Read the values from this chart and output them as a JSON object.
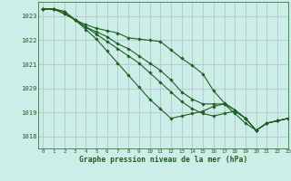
{
  "background_color": "#cceee8",
  "plot_bg_color": "#cceee8",
  "grid_color": "#bbcccc",
  "line_color": "#1e5e1e",
  "xlabel": "Graphe pression niveau de la mer (hPa)",
  "xlim": [
    -0.5,
    23
  ],
  "ylim": [
    1017.5,
    1023.6
  ],
  "yticks": [
    1018,
    1019,
    1020,
    1021,
    1022,
    1023
  ],
  "xticks": [
    0,
    1,
    2,
    3,
    4,
    5,
    6,
    7,
    8,
    9,
    10,
    11,
    12,
    13,
    14,
    15,
    16,
    17,
    18,
    19,
    20,
    21,
    22,
    23
  ],
  "series": [
    [
      1023.3,
      1023.3,
      1023.2,
      1022.85,
      1022.65,
      1022.5,
      1022.4,
      1022.3,
      1022.1,
      1022.05,
      1022.0,
      1021.95,
      1021.6,
      1021.25,
      1020.95,
      1020.6,
      1019.9,
      1019.4,
      1019.1,
      1018.75,
      1018.25,
      1018.55,
      1018.65,
      1018.75
    ],
    [
      1023.3,
      1023.3,
      1023.2,
      1022.85,
      1022.55,
      1022.35,
      1022.15,
      1021.85,
      1021.65,
      1021.35,
      1021.05,
      1020.75,
      1020.35,
      1019.85,
      1019.55,
      1019.35,
      1019.35,
      1019.35,
      1019.1,
      1018.75,
      1018.25,
      1018.55,
      1018.65,
      1018.75
    ],
    [
      1023.3,
      1023.3,
      1023.1,
      1022.85,
      1022.55,
      1022.25,
      1021.95,
      1021.65,
      1021.35,
      1021.05,
      1020.65,
      1020.25,
      1019.85,
      1019.45,
      1019.15,
      1018.95,
      1018.85,
      1018.95,
      1019.05,
      1018.75,
      1018.25,
      1018.55,
      1018.65,
      1018.75
    ],
    [
      1023.3,
      1023.3,
      1023.1,
      1022.85,
      1022.45,
      1022.05,
      1021.55,
      1021.05,
      1020.55,
      1020.05,
      1019.55,
      1019.15,
      1018.75,
      1018.85,
      1018.95,
      1019.05,
      1019.25,
      1019.35,
      1018.95,
      1018.55,
      1018.25,
      1018.55,
      1018.65,
      1018.75
    ]
  ]
}
